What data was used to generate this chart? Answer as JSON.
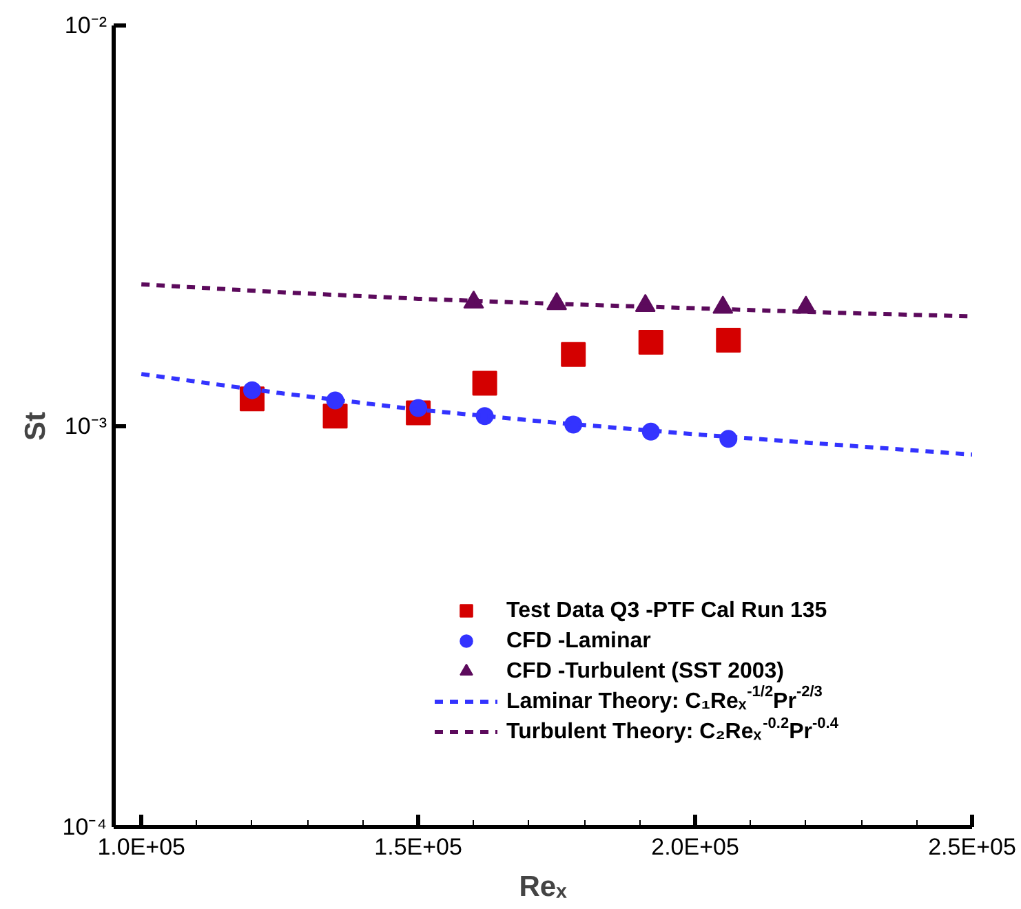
{
  "chart_data": {
    "type": "scatter",
    "xlabel": "Reₓ",
    "ylabel": "St",
    "log": "y",
    "grid": false,
    "legend": "bottom right",
    "xlim": [
      95000,
      250000
    ],
    "ylim": [
      0.0001,
      0.01
    ],
    "xticks": [
      {
        "value": 100000,
        "label": "1.0E+05"
      },
      {
        "value": 110000,
        "label": null
      },
      {
        "value": 120000,
        "label": null
      },
      {
        "value": 130000,
        "label": null
      },
      {
        "value": 140000,
        "label": null
      },
      {
        "value": 150000,
        "label": "1.5E+05"
      },
      {
        "value": 160000,
        "label": null
      },
      {
        "value": 170000,
        "label": null
      },
      {
        "value": 180000,
        "label": null
      },
      {
        "value": 190000,
        "label": null
      },
      {
        "value": 200000,
        "label": "2.0E+05"
      },
      {
        "value": 210000,
        "label": null
      },
      {
        "value": 220000,
        "label": null
      },
      {
        "value": 230000,
        "label": null
      },
      {
        "value": 240000,
        "label": null
      },
      {
        "value": 250000,
        "label": "2.5E+05"
      }
    ],
    "yticks": [
      {
        "value": 0.0001,
        "label": "10⁻⁴"
      },
      {
        "value": 0.001,
        "label": "10⁻³"
      },
      {
        "value": 0.01,
        "label": "10⁻²"
      }
    ],
    "series": [
      {
        "name": "Test Data Q3 -PTF Cal Run 135",
        "type": "scatter",
        "marker": "square",
        "color": "#d40000",
        "x": [
          120000,
          135000,
          150000,
          162000,
          178000,
          192000,
          206000
        ],
        "values": [
          0.00117,
          0.00106,
          0.00108,
          0.00128,
          0.00151,
          0.00162,
          0.00164
        ]
      },
      {
        "name": "CFD -Laminar",
        "type": "scatter",
        "marker": "circle",
        "color": "#3333ff",
        "x": [
          120000,
          135000,
          150000,
          162000,
          178000,
          192000,
          206000
        ],
        "values": [
          0.00123,
          0.00116,
          0.00111,
          0.00106,
          0.00101,
          0.00097,
          0.00093
        ]
      },
      {
        "name": "CFD -Turbulent (SST 2003)",
        "type": "scatter",
        "marker": "triangle",
        "color": "#5c0a5c",
        "x": [
          160000,
          175000,
          191000,
          205000,
          220000
        ],
        "values": [
          0.00204,
          0.00202,
          0.002,
          0.00198,
          0.00198
        ]
      },
      {
        "name": "Laminar Theory: C₁Reₓ$^{-1/2}$Pr$^{-2/3}$",
        "type": "line",
        "line_style": "dashed",
        "color": "#3333ff",
        "x": [
          100000,
          125000,
          150000,
          175000,
          200000,
          225000,
          250000
        ],
        "values": [
          0.00135,
          0.00121,
          0.0011,
          0.00102,
          0.000955,
          0.0009,
          0.00085
        ]
      },
      {
        "name": "Turbulent Theory: C₂Reₓ$^{-0.2}$Pr$^{-0.4}$",
        "type": "line",
        "line_style": "dashed",
        "color": "#5c0a5c",
        "x": [
          100000,
          125000,
          150000,
          175000,
          200000,
          225000,
          250000
        ],
        "values": [
          0.00226,
          0.00216,
          0.00208,
          0.00202,
          0.00197,
          0.00192,
          0.00188
        ]
      }
    ]
  }
}
